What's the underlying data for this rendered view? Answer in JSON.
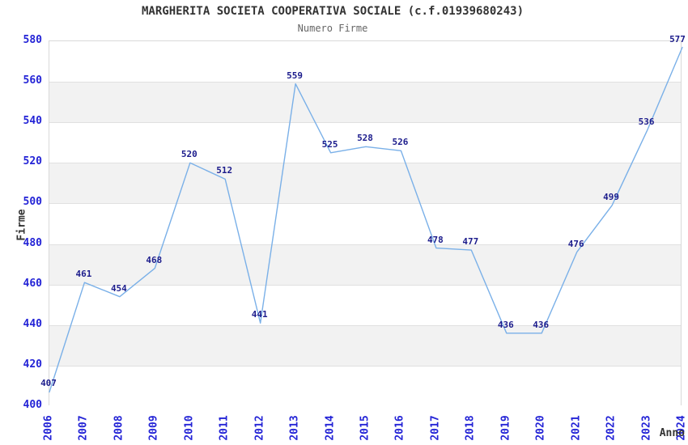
{
  "chart_data": {
    "type": "line",
    "title": "MARGHERITA SOCIETA COOPERATIVA SOCIALE (c.f.01939680243)",
    "subtitle": "Numero Firme",
    "xlabel": "Anno",
    "ylabel": "Firme",
    "categories": [
      "2006",
      "2007",
      "2008",
      "2009",
      "2010",
      "2011",
      "2012",
      "2013",
      "2014",
      "2015",
      "2016",
      "2017",
      "2018",
      "2019",
      "2020",
      "2021",
      "2022",
      "2023",
      "2024"
    ],
    "series": [
      {
        "name": "Numero Firme",
        "values": [
          407,
          461,
          454,
          468,
          520,
          512,
          441,
          559,
          525,
          528,
          526,
          478,
          477,
          436,
          436,
          476,
          499,
          536,
          577
        ]
      }
    ],
    "point_labels": [
      "407",
      "461",
      "454",
      "468",
      "520",
      "512",
      "441",
      "559",
      "525",
      "528",
      "526",
      "478",
      "477",
      "436",
      "436",
      "476",
      "499",
      "536",
      "577"
    ],
    "ylim": [
      400,
      580
    ],
    "ytick_step": 20,
    "yticks": [
      "400",
      "420",
      "440",
      "460",
      "480",
      "500",
      "520",
      "540",
      "560",
      "580"
    ],
    "grid": "horizontal-alternating-bands",
    "legend": "none",
    "colors": {
      "line": "#7ab0e8",
      "band": "#f2f2f2",
      "gridline": "#e0e0e0",
      "plot_border": "#d9d9d9",
      "axis_tick_label": "#2323d6",
      "point_label": "#1c1c8c",
      "title": "#333333",
      "subtitle": "#666666"
    }
  }
}
